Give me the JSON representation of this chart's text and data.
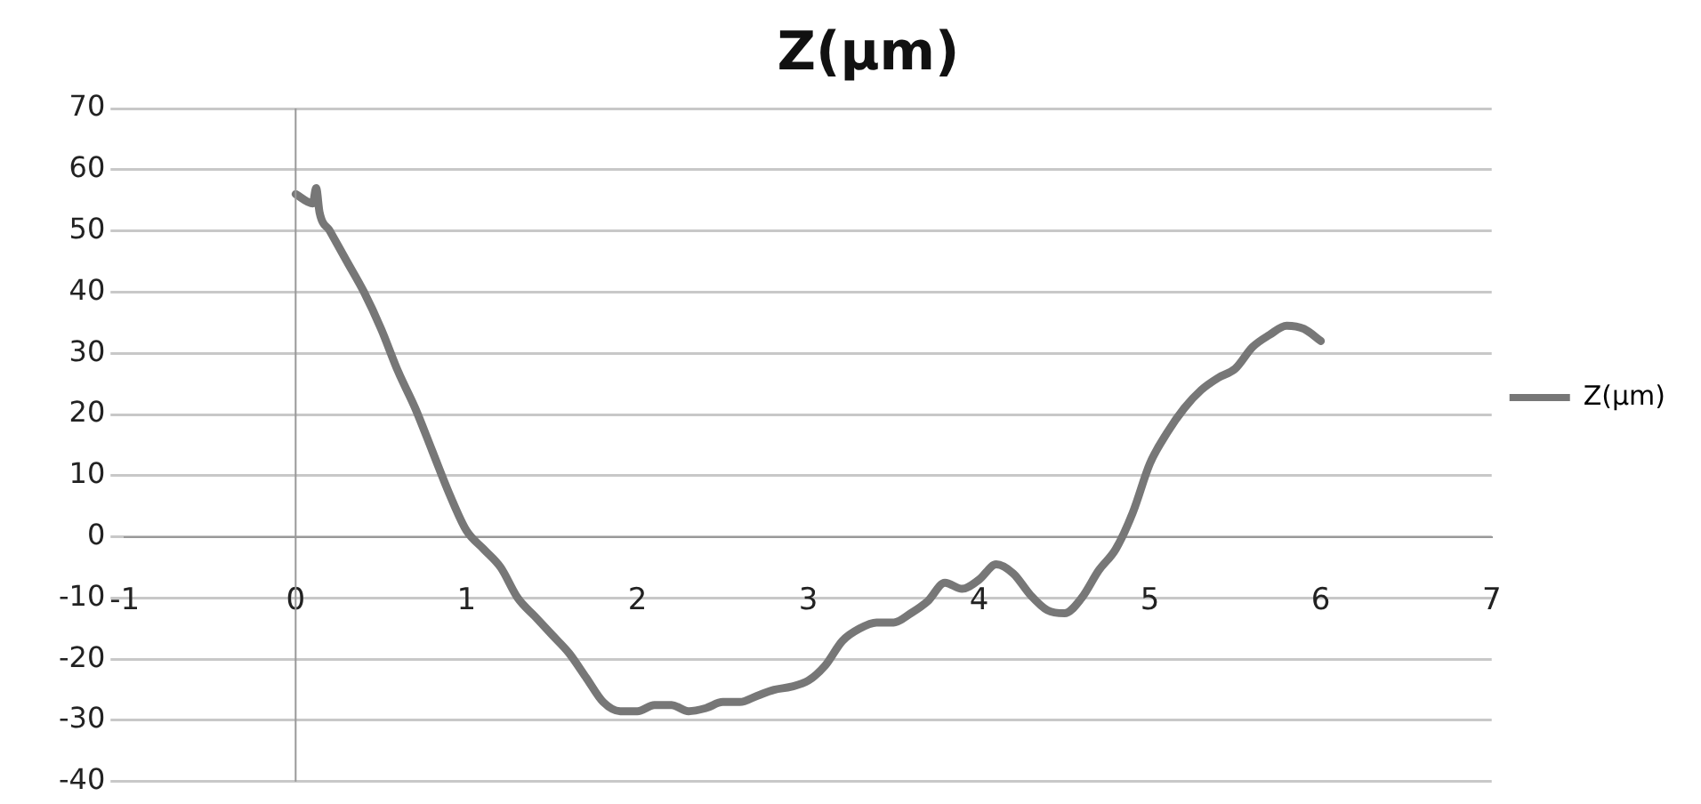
{
  "chart_data": {
    "type": "line",
    "title": "Z(µm)",
    "x": [
      0,
      0.1,
      0.12,
      0.14,
      0.2,
      0.3,
      0.4,
      0.5,
      0.6,
      0.7,
      0.8,
      0.9,
      1.0,
      1.1,
      1.2,
      1.3,
      1.4,
      1.5,
      1.6,
      1.7,
      1.8,
      1.9,
      2.0,
      2.1,
      2.2,
      2.3,
      2.4,
      2.5,
      2.6,
      2.7,
      2.8,
      2.9,
      3.0,
      3.1,
      3.2,
      3.3,
      3.4,
      3.5,
      3.6,
      3.7,
      3.8,
      3.9,
      4.0,
      4.1,
      4.2,
      4.3,
      4.4,
      4.5,
      4.6,
      4.7,
      4.8,
      4.9,
      5.0,
      5.1,
      5.2,
      5.3,
      5.4,
      5.5,
      5.6,
      5.7,
      5.8,
      5.9,
      6.0
    ],
    "series": [
      {
        "name": "Z(µm)",
        "color": "#777777",
        "values": [
          56,
          54.5,
          57,
          53,
          50,
          45,
          40,
          34,
          27,
          21,
          14,
          7,
          1,
          -2,
          -5,
          -10,
          -13,
          -16,
          -19,
          -23,
          -27,
          -28.5,
          -28.5,
          -27.5,
          -27.5,
          -28.5,
          -28,
          -27,
          -27,
          -26,
          -25,
          -24.5,
          -23.5,
          -21,
          -17,
          -15,
          -14,
          -14,
          -12.5,
          -10.5,
          -7.5,
          -8.5,
          -7,
          -4.5,
          -6,
          -9.5,
          -12,
          -12.5,
          -10,
          -5.5,
          -2,
          4,
          12,
          17,
          21,
          24,
          26,
          27.5,
          31,
          33,
          34.5,
          34,
          32
        ]
      }
    ],
    "xlim": [
      -1,
      7
    ],
    "xticks": [
      -1,
      0,
      1,
      2,
      3,
      4,
      5,
      6,
      7
    ],
    "ylim": [
      -40,
      70
    ],
    "yticks": [
      -40,
      -30,
      -20,
      -10,
      0,
      10,
      20,
      30,
      40,
      50,
      60,
      70
    ],
    "grid": "y",
    "legend": "right",
    "marker": "none",
    "line_style": "solid"
  }
}
